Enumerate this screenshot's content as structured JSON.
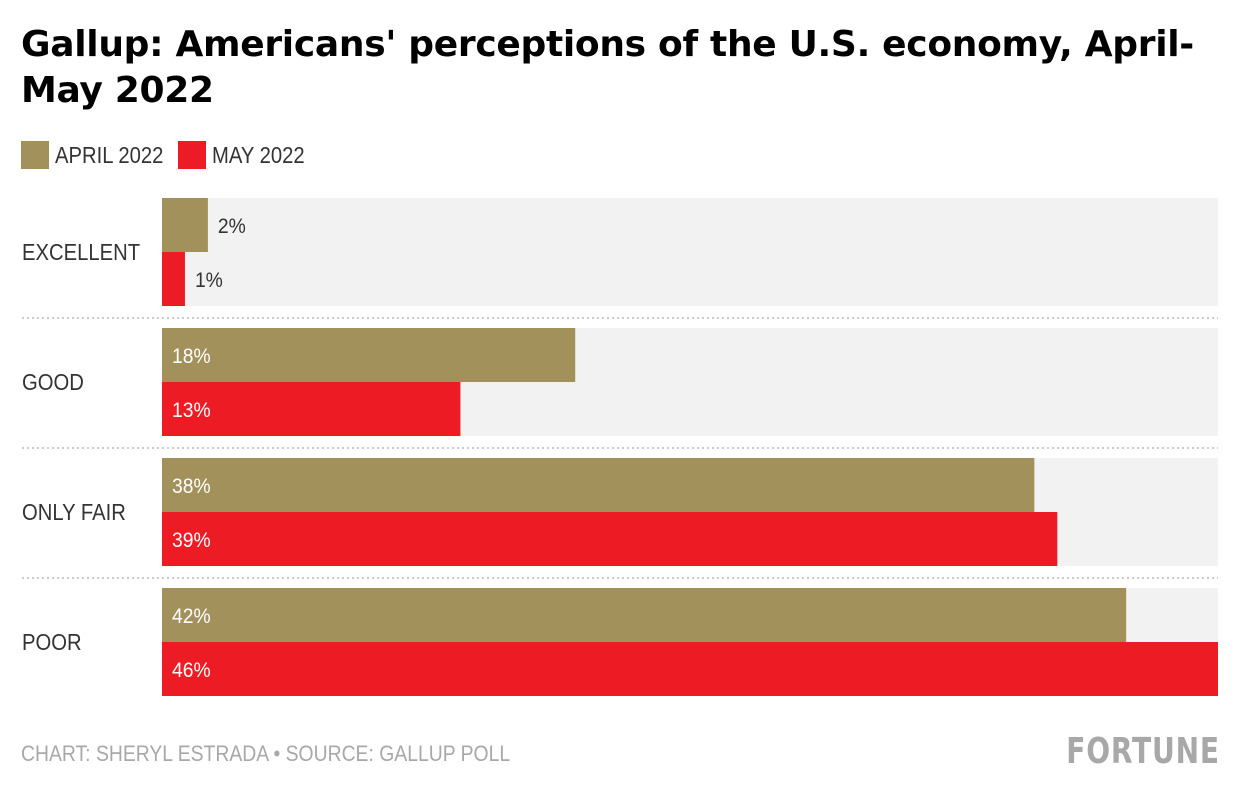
{
  "header": {
    "title": "Gallup: Americans' perceptions of the U.S. economy, April-May 2022"
  },
  "legend": [
    {
      "label": "APRIL 2022",
      "color": "#a3915c"
    },
    {
      "label": "MAY 2022",
      "color": "#ed1c24"
    }
  ],
  "footer": {
    "credit": "CHART: SHERYL ESTRADA • SOURCE: GALLUP POLL",
    "logo": "FORTUNE"
  },
  "colors": {
    "track": "#f2f2f2",
    "divider": "#cccccc",
    "label_dark": "#333333",
    "label_light": "#ffffff"
  },
  "chart_data": {
    "type": "bar",
    "orientation": "horizontal",
    "title": "Gallup: Americans' perceptions of the U.S. economy, April-May 2022",
    "categories": [
      "EXCELLENT",
      "GOOD",
      "ONLY FAIR",
      "POOR"
    ],
    "series": [
      {
        "name": "APRIL 2022",
        "color": "#a3915c",
        "values": [
          2,
          18,
          38,
          42
        ],
        "labels": [
          "2%",
          "18%",
          "38%",
          "42%"
        ]
      },
      {
        "name": "MAY 2022",
        "color": "#ed1c24",
        "values": [
          1,
          13,
          39,
          46
        ],
        "labels": [
          "1%",
          "13%",
          "39%",
          "46%"
        ]
      }
    ],
    "xlim": [
      0,
      46
    ],
    "xlabel": "",
    "ylabel": "",
    "grid": false,
    "legend_position": "top-left",
    "unit": "%"
  }
}
